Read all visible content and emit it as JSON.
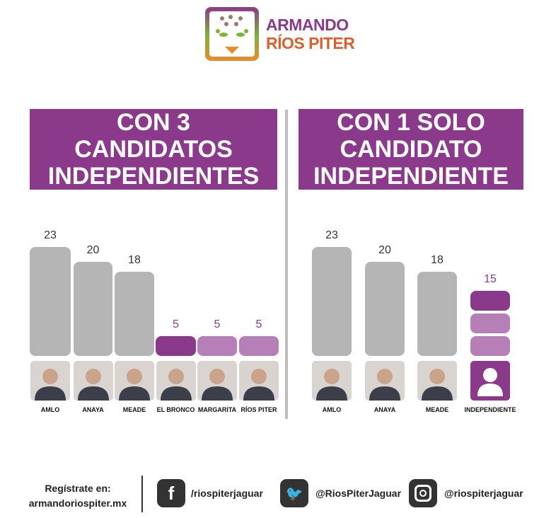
{
  "logo": {
    "line1": "ARMANDO",
    "line2": "RÍOS PITER"
  },
  "colors": {
    "purple_dark": "#8b3a8b",
    "purple_light": "#b77fb8",
    "gray": "#b5b5b5",
    "value_purple": "#8b3a8b"
  },
  "chart_data": [
    {
      "type": "bar",
      "title": "CON 3 CANDIDATOS INDEPENDIENTES",
      "categories": [
        "AMLO",
        "ANAYA",
        "MEADE",
        "EL BRONCO",
        "MARGARITA",
        "RÍOS PITER"
      ],
      "values": [
        23,
        20,
        18,
        5,
        5,
        5
      ],
      "bar_colors": [
        "gray",
        "gray",
        "gray",
        "purple_dark",
        "purple_light",
        "purple_light"
      ],
      "grid": false
    },
    {
      "type": "bar",
      "title": "CON 1 SOLO CANDIDATO INDEPENDIENTE",
      "categories": [
        "AMLO",
        "ANAYA",
        "MEADE",
        "INDEPENDIENTE"
      ],
      "values": [
        23,
        20,
        18,
        15
      ],
      "stacked_last": [
        5,
        5,
        5
      ],
      "bar_colors": [
        "gray",
        "gray",
        "gray",
        "purple_dark"
      ],
      "grid": false
    }
  ],
  "footer": {
    "register_label": "Regístrate en:",
    "website": "armandoriospiter.mx",
    "facebook": "/riospiterjaguar",
    "twitter": "@RiosPiterJaguar",
    "instagram": "@riospiterjaguar"
  }
}
